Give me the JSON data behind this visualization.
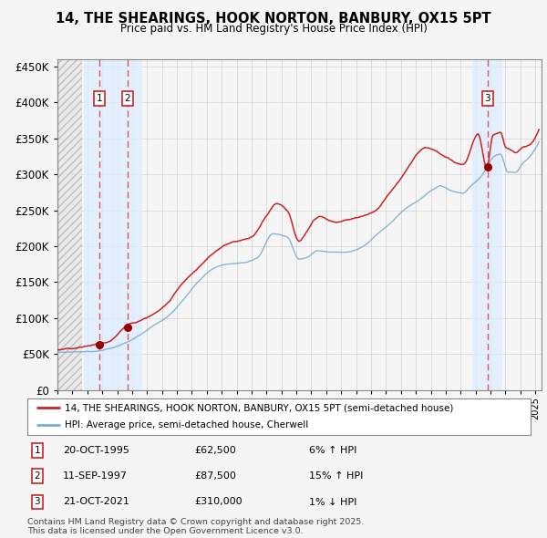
{
  "title1": "14, THE SHEARINGS, HOOK NORTON, BANBURY, OX15 5PT",
  "title2": "Price paid vs. HM Land Registry's House Price Index (HPI)",
  "legend1": "14, THE SHEARINGS, HOOK NORTON, BANBURY, OX15 5PT (semi-detached house)",
  "legend2": "HPI: Average price, semi-detached house, Cherwell",
  "sale1_date": "20-OCT-1995",
  "sale1_price": 62500,
  "sale1_hpi": "6% ↑ HPI",
  "sale1_year": 1995.8,
  "sale2_date": "11-SEP-1997",
  "sale2_price": 87500,
  "sale2_hpi": "15% ↑ HPI",
  "sale2_year": 1997.7,
  "sale3_date": "21-OCT-2021",
  "sale3_price": 310000,
  "sale3_hpi": "1% ↓ HPI",
  "sale3_year": 2021.8,
  "footnote": "Contains HM Land Registry data © Crown copyright and database right 2025.\nThis data is licensed under the Open Government Licence v3.0.",
  "hpi_color": "#7aafd4",
  "property_color": "#cc2222",
  "marker_color": "#990000",
  "vline_color": "#e05555",
  "band_color": "#ddeeff",
  "grid_color": "#bbbbbb",
  "bg_color": "#f5f5f5",
  "chart_bg": "#f5f5f5",
  "ylim": [
    0,
    460000
  ],
  "yticks": [
    0,
    50000,
    100000,
    150000,
    200000,
    250000,
    300000,
    350000,
    400000,
    450000
  ],
  "xlabel_fontsize": 7.5,
  "ylabel_fontsize": 9,
  "title1_fontsize": 11,
  "title2_fontsize": 9
}
